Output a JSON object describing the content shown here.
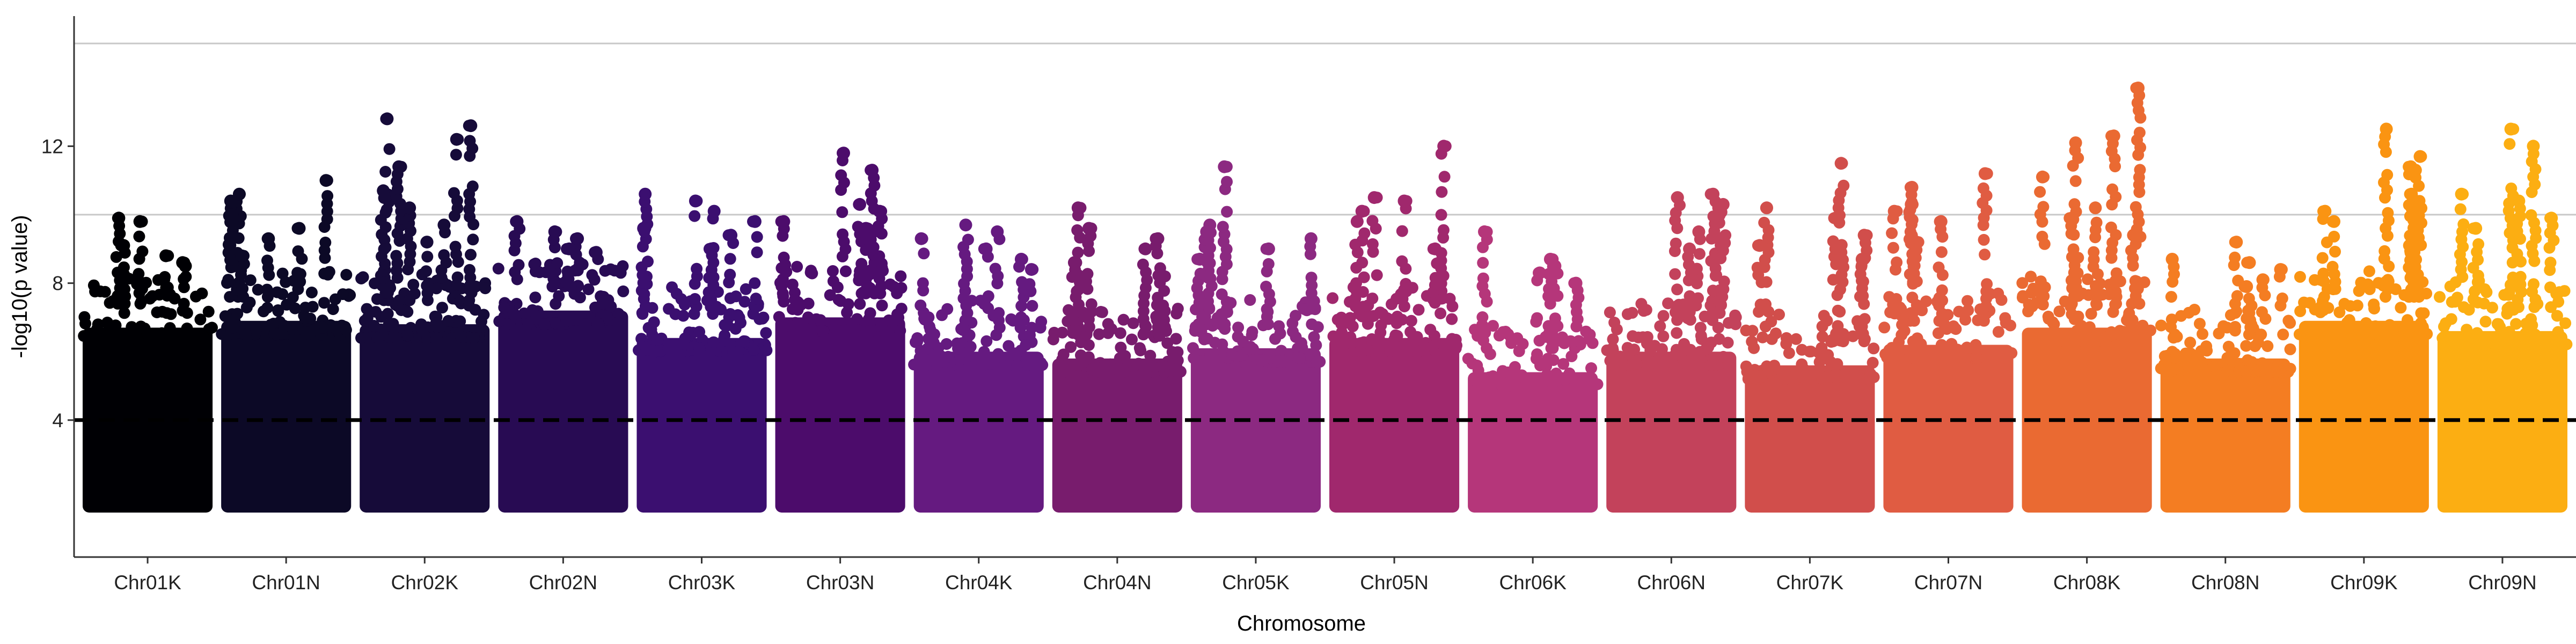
{
  "chart_data": {
    "type": "scatter",
    "subtype": "manhattan",
    "title": "",
    "xlabel": "Chromosome",
    "ylabel": "-log10(p value)",
    "ylim": [
      0,
      15.8
    ],
    "yticks": [
      4,
      8,
      12
    ],
    "threshold": 4,
    "horizontal_reference_lines": [
      10,
      15
    ],
    "grid": false,
    "legend": "none",
    "point_floor": 1.3,
    "categories": [
      "Chr01K",
      "Chr01N",
      "Chr02K",
      "Chr02N",
      "Chr03K",
      "Chr03N",
      "Chr04K",
      "Chr04N",
      "Chr05K",
      "Chr05N",
      "Chr06K",
      "Chr06N",
      "Chr07K",
      "Chr07N",
      "Chr08K",
      "Chr08N",
      "Chr09K",
      "Chr09N"
    ],
    "colors": [
      "#000004",
      "#0c0926",
      "#160b39",
      "#280b53",
      "#3b0f70",
      "#4c0c6b",
      "#651a80",
      "#781c6d",
      "#8c2981",
      "#a0286d",
      "#b5367a",
      "#c3425b",
      "#d14e4b",
      "#e05c42",
      "#ea6a32",
      "#f47d22",
      "#fa9412",
      "#fcae12"
    ],
    "series": [
      {
        "name": "Chr01K",
        "band_top": 7.9,
        "peaks": [
          9.9,
          9.8,
          9.1,
          8.8,
          8.6,
          8.5
        ]
      },
      {
        "name": "Chr01N",
        "band_top": 8.1,
        "peaks": [
          11.0,
          10.6,
          10.4,
          10.0,
          9.6,
          9.3,
          8.8
        ]
      },
      {
        "name": "Chr02K",
        "band_top": 8.0,
        "peaks": [
          12.8,
          12.6,
          12.2,
          11.4,
          10.7,
          10.2,
          9.7,
          9.2
        ]
      },
      {
        "name": "Chr02N",
        "band_top": 8.4,
        "peaks": [
          9.8,
          9.5,
          9.3,
          9.0,
          8.9
        ]
      },
      {
        "name": "Chr03K",
        "band_top": 7.6,
        "peaks": [
          10.6,
          10.4,
          10.1,
          9.8,
          9.6,
          9.4,
          9.0
        ]
      },
      {
        "name": "Chr03N",
        "band_top": 8.2,
        "peaks": [
          11.8,
          11.3,
          10.3,
          10.1,
          9.8,
          9.6,
          9.3
        ]
      },
      {
        "name": "Chr04K",
        "band_top": 7.2,
        "peaks": [
          9.7,
          9.5,
          9.3,
          9.0,
          8.7,
          8.4
        ]
      },
      {
        "name": "Chr04N",
        "band_top": 7.0,
        "peaks": [
          10.2,
          9.6,
          9.3,
          9.0,
          8.6,
          8.2
        ]
      },
      {
        "name": "Chr05K",
        "band_top": 7.3,
        "peaks": [
          11.4,
          9.7,
          9.5,
          9.3,
          9.0,
          8.7
        ]
      },
      {
        "name": "Chr05N",
        "band_top": 7.6,
        "peaks": [
          12.0,
          10.5,
          10.4,
          10.1,
          9.8,
          9.0
        ]
      },
      {
        "name": "Chr06K",
        "band_top": 6.6,
        "peaks": [
          9.5,
          8.7,
          8.5,
          8.3,
          8.0
        ]
      },
      {
        "name": "Chr06N",
        "band_top": 7.2,
        "peaks": [
          10.6,
          10.5,
          10.3,
          10.2,
          9.5,
          9.0
        ]
      },
      {
        "name": "Chr07K",
        "band_top": 6.8,
        "peaks": [
          11.5,
          10.2,
          9.9,
          9.4,
          9.1,
          8.7
        ]
      },
      {
        "name": "Chr07N",
        "band_top": 7.4,
        "peaks": [
          11.2,
          10.8,
          10.3,
          10.1,
          9.8,
          9.2
        ]
      },
      {
        "name": "Chr08K",
        "band_top": 7.9,
        "peaks": [
          13.7,
          12.3,
          12.1,
          11.1,
          10.2,
          9.9,
          9.4
        ]
      },
      {
        "name": "Chr08N",
        "band_top": 7.0,
        "peaks": [
          9.2,
          8.7,
          8.6,
          8.4,
          8.1,
          7.9
        ]
      },
      {
        "name": "Chr09K",
        "band_top": 8.1,
        "peaks": [
          12.5,
          11.7,
          11.4,
          11.3,
          10.6,
          10.1,
          9.8
        ]
      },
      {
        "name": "Chr09N",
        "band_top": 7.8,
        "peaks": [
          12.5,
          12.0,
          10.6,
          10.4,
          9.9,
          9.6
        ]
      }
    ]
  }
}
